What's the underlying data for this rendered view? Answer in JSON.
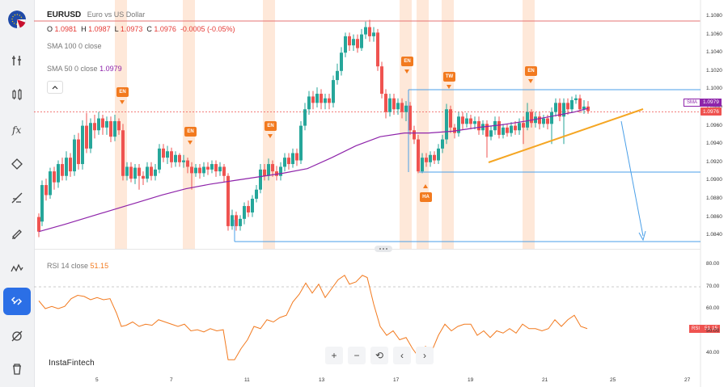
{
  "symbol": {
    "ticker": "EURUSD",
    "description": "Euro vs US Dollar",
    "open_label": "O",
    "open": "1.0981",
    "high_label": "H",
    "high": "1.0987",
    "low_label": "L",
    "low": "1.0973",
    "close_label": "C",
    "close": "1.0976",
    "change": "-0.0005 (-0.05%)"
  },
  "indicators": {
    "sma100": "SMA 100 0 close",
    "sma50": "SMA 50 0 close",
    "sma50_value": "1.0979",
    "rsi_label": "RSI 14 close",
    "rsi_value": "51.15"
  },
  "price_axis": [
    "1.1080",
    "1.1060",
    "1.1040",
    "1.1020",
    "1.1000",
    "1.0980",
    "1.0960",
    "1.0940",
    "1.0920",
    "1.0900",
    "1.0880",
    "1.0860",
    "1.0840"
  ],
  "rsi_axis": [
    "80.00",
    "70.00",
    "60.00",
    "50.00",
    "40.00"
  ],
  "price_tags": {
    "sma_key": "SMA",
    "sma_value": "1.0979",
    "last_value": "1.0976",
    "rsi_key": "RSI",
    "rsi_value": "51.15"
  },
  "dates": [
    "5",
    "7",
    "11",
    "13",
    "17",
    "19",
    "21",
    "25",
    "27"
  ],
  "events": {
    "en": "EN",
    "tw": "TW",
    "ha": "HA"
  },
  "watermark": "InstaFintech",
  "toolbar": {
    "zoom_in": "+",
    "zoom_out": "−",
    "reset": "⟲",
    "prev": "‹",
    "next": "›"
  },
  "colors": {
    "bull": "#26a69a",
    "bear": "#ef5350",
    "sma": "#8e24aa",
    "trendline": "#f5a623",
    "projection": "#4a9fe8",
    "rsi": "#f27a1f",
    "event_band": "#fde0cc"
  }
}
